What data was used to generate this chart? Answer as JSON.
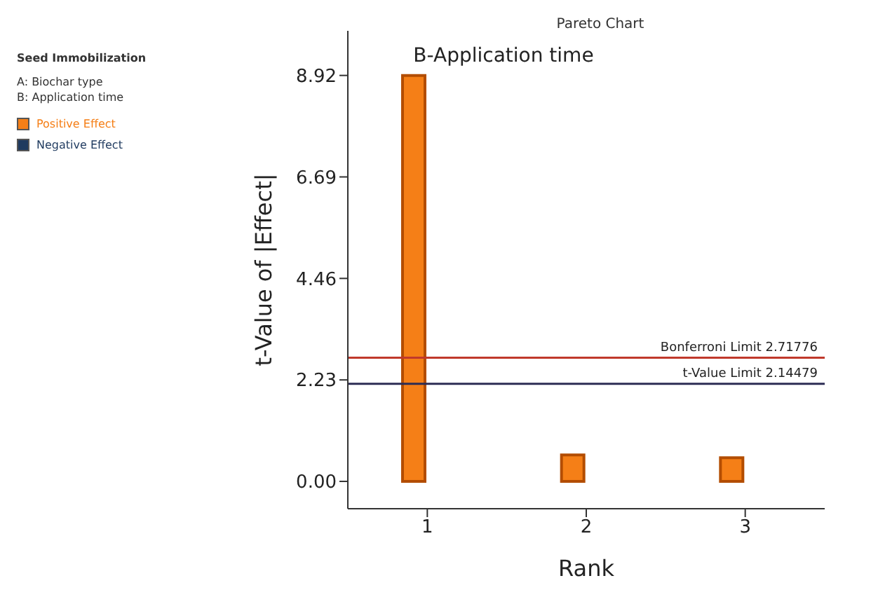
{
  "chart_data": {
    "type": "bar",
    "title": "Pareto Chart",
    "xlabel": "Rank",
    "ylabel": "t-Value of |Effect|",
    "categories": [
      "1",
      "2",
      "3"
    ],
    "series": [
      {
        "name": "Positive Effect",
        "color": "#f57f17",
        "values": [
          8.92,
          0.58,
          0.52
        ]
      },
      {
        "name": "Negative Effect",
        "color": "#1f3a5f",
        "values": [
          null,
          null,
          null
        ]
      }
    ],
    "ylim": [
      -0.6,
      9.9
    ],
    "yticks": [
      "0.00",
      "2.23",
      "4.46",
      "6.69",
      "8.92"
    ],
    "ref_lines": [
      {
        "axis": "y",
        "value": 2.71776,
        "label": "Bonferroni Limit 2.71776",
        "color": "#c0392b"
      },
      {
        "axis": "y",
        "value": 2.14479,
        "label": "t-Value Limit 2.14479",
        "color": "#2c2c54"
      }
    ],
    "annotations": [
      "Seed Immobilization",
      "A: Biochar type",
      "B: Application time",
      {
        "text": "B-Application time",
        "x": "1",
        "y": 8.92
      }
    ],
    "legend": "top left"
  }
}
